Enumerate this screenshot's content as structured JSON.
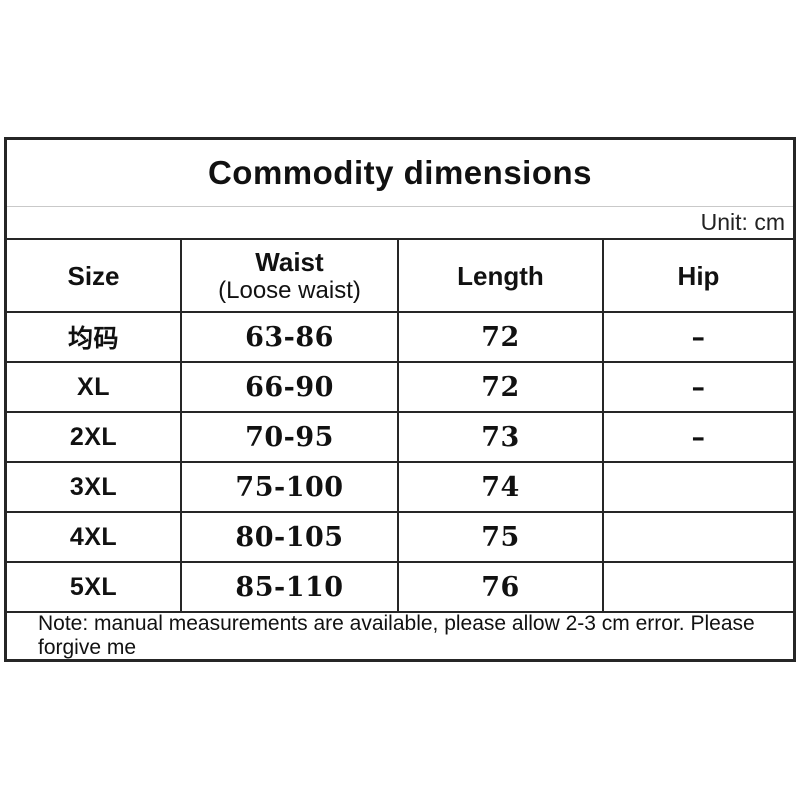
{
  "header": {
    "title": "Commodity dimensions",
    "unit_label": "Unit: cm"
  },
  "table": {
    "columns": [
      {
        "label": "Size",
        "sublabel": ""
      },
      {
        "label": "Waist",
        "sublabel": "(Loose waist)"
      },
      {
        "label": "Length",
        "sublabel": ""
      },
      {
        "label": "Hip",
        "sublabel": ""
      }
    ],
    "rows": [
      {
        "size": "均码",
        "waist": "63-86",
        "length": "72",
        "hip": "–"
      },
      {
        "size": "XL",
        "waist": "66-90",
        "length": "72",
        "hip": "–"
      },
      {
        "size": "2XL",
        "waist": "70-95",
        "length": "73",
        "hip": "–"
      },
      {
        "size": "3XL",
        "waist": "75-100",
        "length": "74",
        "hip": ""
      },
      {
        "size": "4XL",
        "waist": "80-105",
        "length": "75",
        "hip": ""
      },
      {
        "size": "5XL",
        "waist": "85-110",
        "length": "76",
        "hip": ""
      }
    ]
  },
  "note": "Note: manual measurements are available, please allow 2-3 cm error. Please forgive me",
  "colors": {
    "border": "#262626",
    "text": "#111111",
    "divider": "#c9c9c9",
    "background": "#ffffff"
  }
}
